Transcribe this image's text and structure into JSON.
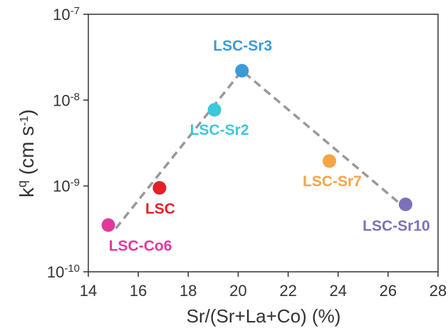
{
  "chart_data": {
    "type": "scatter",
    "xlabel": "Sr/(Sr+La+Co) (%)",
    "ylabel": {
      "base": "k",
      "sup": "q",
      "main": " (cm s",
      "unit_sup": "-1",
      "close": ")"
    },
    "xlim": [
      14,
      28
    ],
    "ylim": [
      1e-10,
      1e-07
    ],
    "yscale": "log",
    "xticks": [
      "14",
      "16",
      "18",
      "20",
      "22",
      "24",
      "26",
      "28"
    ],
    "yticks": [
      {
        "base": "10",
        "exp": "-7"
      },
      {
        "base": "10",
        "exp": "-8"
      },
      {
        "base": "10",
        "exp": "-9"
      },
      {
        "base": "10",
        "exp": "-10"
      }
    ],
    "grid": false,
    "points": [
      {
        "label": "LSC-Co6",
        "x": 14.8,
        "y": 3.5e-10,
        "color": "#e0399b"
      },
      {
        "label": "LSC",
        "x": 16.85,
        "y": 9.5e-10,
        "color": "#e32028"
      },
      {
        "label": "LSC-Sr2",
        "x": 19.05,
        "y": 7.7e-09,
        "color": "#3cc7da"
      },
      {
        "label": "LSC-Sr3",
        "x": 20.15,
        "y": 2.2e-08,
        "color": "#3b9ad8"
      },
      {
        "label": "LSC-Sr7",
        "x": 23.65,
        "y": 1.95e-09,
        "color": "#f5a447"
      },
      {
        "label": "LSC-Sr10",
        "x": 26.7,
        "y": 6.1e-10,
        "color": "#7d70b8"
      }
    ],
    "trend_line": [
      {
        "x": 15.1,
        "y": 3.2e-10
      },
      {
        "x": 20.15,
        "y": 2.2e-08
      },
      {
        "x": 26.6,
        "y": 5.8e-10
      }
    ],
    "trend_line_color": "#999999"
  }
}
